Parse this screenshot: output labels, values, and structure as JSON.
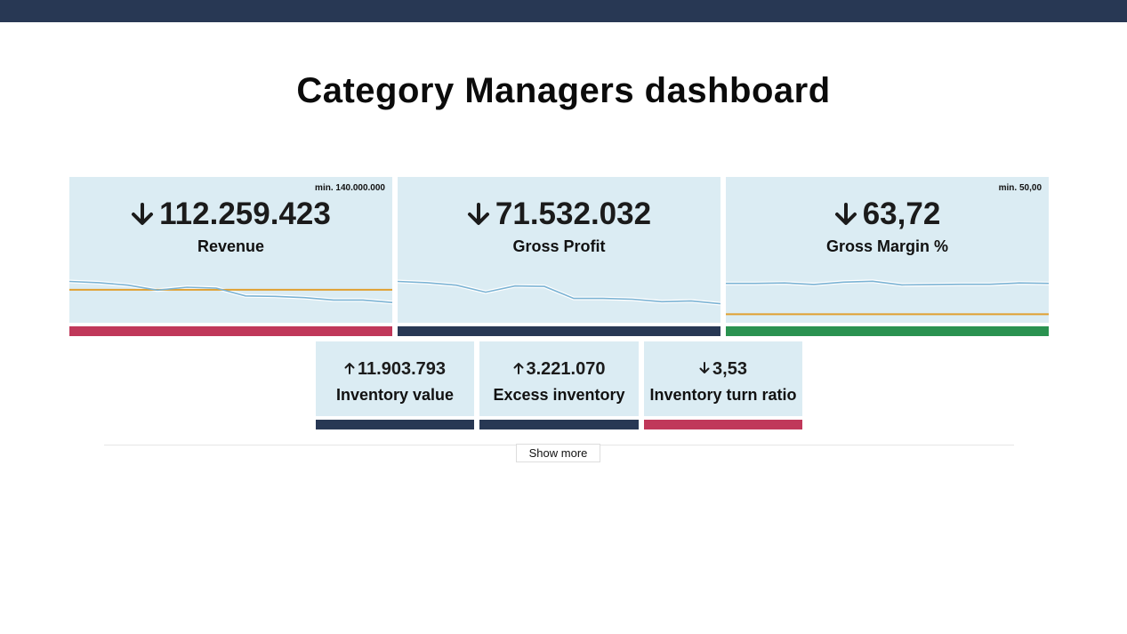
{
  "header": {
    "title": "Category Managers dashboard",
    "bar_color": "#283854"
  },
  "kpis": [
    {
      "id": "revenue",
      "value": "112.259.423",
      "label": "Revenue",
      "min_label": "min. 140.000.000",
      "trend": "down",
      "status_color": "#c0385a",
      "chart_data": {
        "type": "line",
        "series": [
          {
            "values": [
              100,
              97,
              91,
              79,
              86,
              84,
              65,
              64,
              61,
              55,
              55,
              49
            ]
          }
        ],
        "threshold": 80,
        "ylim": [
          0,
          170
        ]
      }
    },
    {
      "id": "gross-profit",
      "value": "71.532.032",
      "label": "Gross Profit",
      "min_label": "",
      "trend": "down",
      "status_color": "#283854",
      "chart_data": {
        "type": "line",
        "series": [
          {
            "values": [
              100,
              97,
              91,
              74,
              89,
              88,
              59,
              59,
              57,
              51,
              53,
              46
            ]
          }
        ],
        "threshold": null,
        "ylim": [
          0,
          170
        ]
      }
    },
    {
      "id": "gross-margin",
      "value": "63,72",
      "label": "Gross Margin %",
      "min_label": "min. 50,00",
      "trend": "down",
      "status_color": "#2a9250",
      "chart_data": {
        "type": "line",
        "series": [
          {
            "values": [
              64.5,
              64.5,
              64.7,
              64.0,
              65.1,
              65.5,
              63.8,
              63.9,
              64.1,
              64.1,
              64.7,
              64.5
            ]
          }
        ],
        "threshold": 50,
        "ylim": [
          46,
          79
        ]
      }
    }
  ],
  "small_kpis": [
    {
      "id": "inventory-value",
      "value": "11.903.793",
      "label": "Inventory value",
      "trend": "up",
      "status_color": "#283854"
    },
    {
      "id": "excess-inventory",
      "value": "3.221.070",
      "label": "Excess inventory",
      "trend": "up",
      "status_color": "#283854"
    },
    {
      "id": "inventory-turn-ratio",
      "value": "3,53",
      "label": "Inventory turn ratio",
      "trend": "down",
      "status_color": "#c0385a"
    }
  ],
  "show_more_label": "Show more",
  "colors": {
    "card_bg": "#dbecf3",
    "line": "#7bb3d4",
    "threshold": "#e0a030"
  }
}
